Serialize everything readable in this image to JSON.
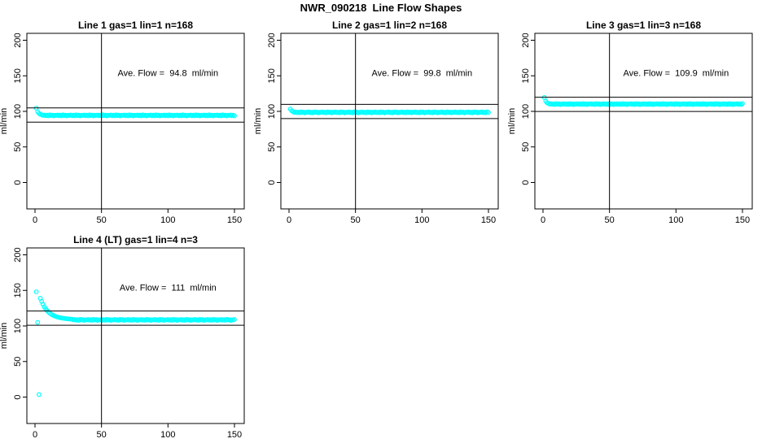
{
  "figure": {
    "title": "NWR_090218  Line Flow Shapes",
    "background": "#ffffff",
    "point_color": "#00ffff",
    "line_color": "#000000"
  },
  "chart_data": [
    {
      "type": "scatter",
      "title": "Line 1 gas=1 lin=1 n=168",
      "annotation": "Ave. Flow =  94.8  ml/min",
      "ave_flow_ml_min": 94.8,
      "ylabel": "ml/min",
      "xlabel": "",
      "x_ticks": [
        0,
        50,
        100,
        150
      ],
      "y_ticks": [
        0,
        50,
        100,
        150,
        200
      ],
      "xlim": [
        0,
        150
      ],
      "ylim": [
        -35,
        210
      ],
      "ref_lines_y": [
        104.8,
        84.8
      ],
      "ref_line_x": 50,
      "series": {
        "name": "flow",
        "x_start": 1,
        "x_step": 1,
        "y": [
          104.5,
          99.5,
          97.2,
          95.8,
          95.2,
          94.3,
          94.9,
          93.9,
          94.6,
          93.7,
          95.1,
          94.1,
          94.7,
          93.6,
          94.5,
          94.3,
          94.9,
          93.9,
          94.6,
          93.7,
          95.1,
          94.1,
          94.7,
          93.6,
          94.5,
          94.3,
          94.9,
          93.9,
          94.6,
          93.7,
          95.1,
          94.1,
          94.7,
          93.6,
          94.5,
          94.3,
          94.9,
          93.9,
          94.6,
          93.7,
          95.1,
          94.1,
          94.7,
          93.6,
          94.5,
          94.3,
          94.9,
          93.9,
          94.6,
          93.7,
          95.1,
          94.1,
          94.7,
          93.6,
          94.5,
          94.3,
          94.9,
          93.9,
          94.6,
          93.7,
          95.1,
          94.1,
          94.7,
          93.6,
          94.5,
          94.3,
          94.9,
          93.9,
          94.6,
          93.7,
          95.1,
          94.1,
          94.7,
          93.6,
          94.5,
          94.3,
          94.9,
          93.9,
          94.6,
          93.7,
          95.1,
          94.1,
          94.7,
          93.6,
          94.5,
          94.3,
          94.9,
          93.9,
          94.6,
          93.7,
          95.1,
          94.1,
          94.7,
          93.6,
          94.5,
          94.3,
          94.9,
          93.9,
          94.6,
          93.7,
          95.1,
          94.1,
          94.7,
          93.6,
          94.5,
          94.3,
          94.9,
          93.9,
          94.6,
          93.7,
          95.1,
          94.1,
          94.7,
          93.6,
          94.5,
          94.3,
          94.9,
          93.9,
          94.6,
          93.7,
          95.1,
          94.1,
          94.7,
          93.6,
          94.5,
          94.3,
          94.9,
          93.9,
          94.6,
          93.7,
          95.1,
          94.1,
          94.7,
          93.6,
          94.5,
          94.3,
          94.9,
          93.9,
          94.6,
          93.7,
          95.1,
          94.1,
          94.7,
          93.6,
          94.5,
          94.3,
          94.9,
          93.9,
          94.6,
          93.7
        ]
      }
    },
    {
      "type": "scatter",
      "title": "Line 2 gas=1 lin=2 n=168",
      "annotation": "Ave. Flow =  99.8  ml/min",
      "ave_flow_ml_min": 99.8,
      "ylabel": "ml/min",
      "xlabel": "",
      "x_ticks": [
        0,
        50,
        100,
        150
      ],
      "y_ticks": [
        0,
        50,
        100,
        150,
        200
      ],
      "xlim": [
        0,
        150
      ],
      "ylim": [
        -35,
        210
      ],
      "ref_lines_y": [
        109.8,
        89.8
      ],
      "ref_line_x": 50,
      "series": {
        "name": "flow",
        "x_start": 1,
        "x_step": 1,
        "y": [
          103.2,
          100.8,
          99.5,
          98.6,
          99.2,
          98.2,
          98.9,
          98.0,
          99.4,
          98.4,
          99.0,
          97.9,
          98.8,
          98.6,
          99.2,
          98.2,
          98.9,
          98.0,
          99.4,
          98.4,
          99.0,
          97.9,
          98.8,
          98.6,
          99.2,
          98.2,
          98.9,
          98.0,
          99.4,
          98.4,
          99.0,
          97.9,
          98.8,
          98.6,
          99.2,
          98.2,
          98.9,
          98.0,
          99.4,
          98.4,
          99.0,
          97.9,
          98.8,
          98.6,
          99.2,
          98.2,
          98.9,
          98.0,
          99.4,
          98.4,
          99.0,
          97.9,
          98.8,
          98.6,
          99.2,
          98.2,
          98.9,
          98.0,
          99.4,
          98.4,
          99.0,
          97.9,
          98.8,
          98.6,
          99.2,
          98.2,
          98.9,
          98.0,
          99.4,
          98.4,
          99.0,
          97.9,
          98.8,
          98.6,
          99.2,
          98.2,
          98.9,
          98.0,
          99.4,
          98.4,
          99.0,
          97.9,
          98.8,
          98.6,
          99.2,
          98.2,
          98.9,
          98.0,
          99.4,
          98.4,
          99.0,
          97.9,
          98.8,
          98.6,
          99.2,
          98.2,
          98.9,
          98.0,
          99.4,
          98.4,
          99.0,
          97.9,
          98.8,
          98.6,
          99.2,
          98.2,
          98.9,
          98.0,
          99.4,
          98.4,
          99.0,
          97.9,
          98.8,
          98.6,
          99.2,
          98.2,
          98.9,
          98.0,
          99.4,
          98.4,
          99.0,
          97.9,
          98.8,
          98.6,
          99.2,
          98.2,
          98.9,
          98.0,
          99.4,
          98.4,
          99.0,
          97.9,
          98.8,
          98.6,
          99.2,
          98.2,
          98.9,
          98.0,
          99.4,
          98.4,
          99.0,
          97.9,
          98.8,
          98.6,
          99.2,
          98.2,
          98.9,
          98.0,
          99.4,
          98.4
        ]
      }
    },
    {
      "type": "scatter",
      "title": "Line 3 gas=1 lin=3 n=168",
      "annotation": "Ave. Flow =  109.9  ml/min",
      "ave_flow_ml_min": 109.9,
      "ylabel": "ml/min",
      "xlabel": "",
      "x_ticks": [
        0,
        50,
        100,
        150
      ],
      "y_ticks": [
        0,
        50,
        100,
        150,
        200
      ],
      "xlim": [
        0,
        150
      ],
      "ylim": [
        -35,
        210
      ],
      "ref_lines_y": [
        119.9,
        99.9
      ],
      "ref_line_x": 50,
      "series": {
        "name": "flow",
        "x_start": 1,
        "x_step": 1,
        "y": [
          119.5,
          114.5,
          112.2,
          111.2,
          110.2,
          110.8,
          109.8,
          110.5,
          109.6,
          111.0,
          110.0,
          110.6,
          109.5,
          110.4,
          110.2,
          110.8,
          109.8,
          110.5,
          109.6,
          111.0,
          110.0,
          110.6,
          109.5,
          110.4,
          110.2,
          110.8,
          109.8,
          110.5,
          109.6,
          111.0,
          110.0,
          110.6,
          109.5,
          110.4,
          110.2,
          110.8,
          109.8,
          110.5,
          109.6,
          111.0,
          110.0,
          110.6,
          109.5,
          110.4,
          110.2,
          110.8,
          109.8,
          110.5,
          109.6,
          111.0,
          110.0,
          110.6,
          109.5,
          110.4,
          110.2,
          110.8,
          109.8,
          110.5,
          109.6,
          111.0,
          110.0,
          110.6,
          109.5,
          110.4,
          110.2,
          110.8,
          109.8,
          110.5,
          109.6,
          111.0,
          110.0,
          110.6,
          109.5,
          110.4,
          110.2,
          110.8,
          109.8,
          110.5,
          109.6,
          111.0,
          110.0,
          110.6,
          109.5,
          110.4,
          110.2,
          110.8,
          109.8,
          110.5,
          109.6,
          111.0,
          110.0,
          110.6,
          109.5,
          110.4,
          110.2,
          110.8,
          109.8,
          110.5,
          109.6,
          111.0,
          110.0,
          110.6,
          109.5,
          110.4,
          110.2,
          110.8,
          109.8,
          110.5,
          109.6,
          111.0,
          110.0,
          110.6,
          109.5,
          110.4,
          110.2,
          110.8,
          109.8,
          110.5,
          109.6,
          111.0,
          110.0,
          110.6,
          109.5,
          110.4,
          110.2,
          110.8,
          109.8,
          110.5,
          109.6,
          111.0,
          110.0,
          110.6,
          109.5,
          110.4,
          110.2,
          110.8,
          109.8,
          110.5,
          109.6,
          111.0,
          110.0,
          110.6,
          109.5,
          110.4,
          110.2,
          110.8,
          109.8,
          110.5,
          109.6,
          111.0
        ]
      }
    },
    {
      "type": "scatter",
      "title": "Line 4 (LT) gas=1 lin=4 n=3",
      "annotation": "Ave. Flow =  111  ml/min",
      "ave_flow_ml_min": 111,
      "ylabel": "ml/min",
      "xlabel": "",
      "x_ticks": [
        0,
        50,
        100,
        150
      ],
      "y_ticks": [
        0,
        50,
        100,
        150,
        200
      ],
      "xlim": [
        0,
        150
      ],
      "ylim": [
        -35,
        210
      ],
      "ref_lines_y": [
        121,
        101
      ],
      "ref_line_x": 50,
      "series": {
        "name": "flow",
        "x_start": 1,
        "x_step": 1,
        "y": [
          148,
          105,
          3.5,
          139,
          134.5,
          130.5,
          127,
          124.2,
          121.8,
          119.8,
          118.2,
          116.8,
          115.6,
          114.6,
          113.8,
          113.1,
          112.5,
          112.0,
          111.6,
          111.2,
          110.9,
          110.6,
          110.3,
          110.1,
          109.9,
          109.7,
          109.5,
          109.4,
          108.5,
          109.1,
          108.1,
          108.8,
          107.9,
          109.3,
          108.3,
          108.9,
          107.8,
          108.7,
          108.5,
          109.1,
          108.1,
          108.8,
          107.9,
          109.3,
          108.3,
          108.9,
          107.8,
          108.7,
          108.5,
          109.1,
          108.1,
          108.8,
          107.9,
          109.3,
          108.3,
          108.9,
          107.8,
          108.7,
          108.5,
          109.1,
          108.1,
          108.8,
          107.9,
          109.3,
          108.3,
          108.9,
          107.8,
          108.7,
          108.5,
          109.1,
          108.1,
          108.8,
          107.9,
          109.3,
          108.3,
          108.9,
          107.8,
          108.7,
          108.5,
          109.1,
          108.1,
          108.8,
          107.9,
          109.3,
          108.3,
          108.9,
          107.8,
          108.7,
          108.5,
          109.1,
          108.1,
          108.8,
          107.9,
          109.3,
          108.3,
          108.9,
          107.8,
          108.7,
          108.5,
          109.1,
          108.1,
          108.8,
          107.9,
          109.3,
          108.3,
          108.9,
          107.8,
          108.7,
          108.5,
          109.1,
          108.1,
          108.8,
          107.9,
          109.3,
          108.3,
          108.9,
          107.8,
          108.7,
          108.5,
          109.1,
          108.1,
          108.8,
          107.9,
          109.3,
          108.3,
          108.9,
          107.8,
          108.7,
          108.5,
          109.1,
          108.1,
          108.8,
          107.9,
          109.3,
          108.3,
          108.9,
          107.8,
          108.7,
          108.5,
          109.1,
          108.1,
          108.8,
          107.9,
          109.3,
          108.3,
          108.9,
          107.8,
          108.7,
          108.5,
          109.1
        ]
      }
    }
  ]
}
